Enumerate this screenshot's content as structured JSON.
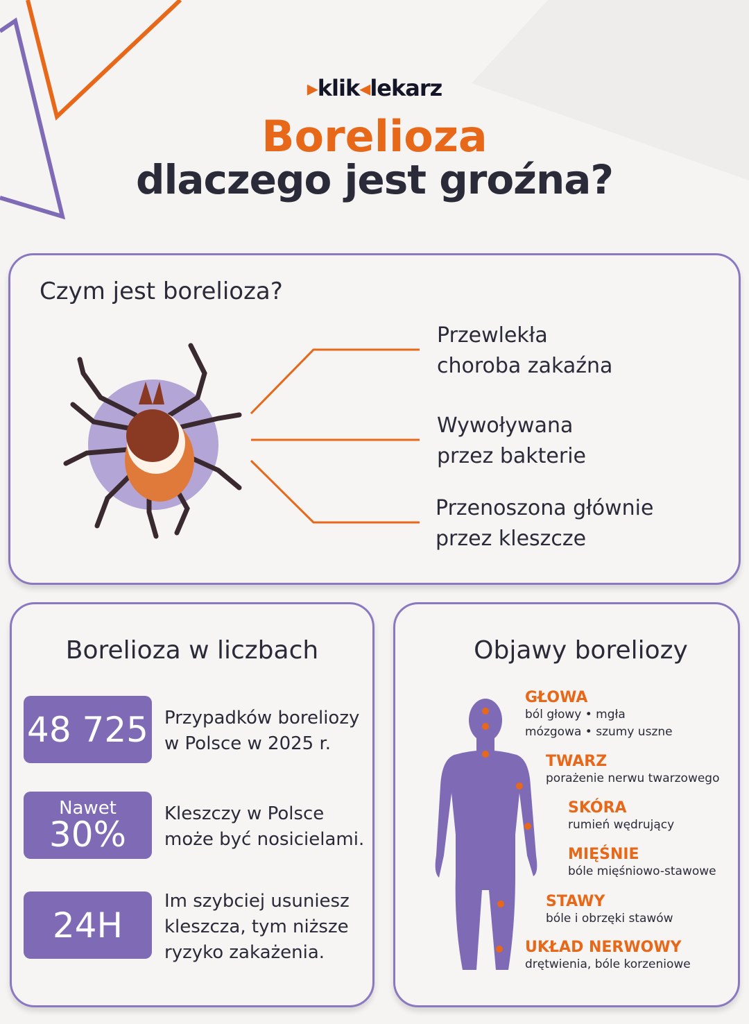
{
  "brand": {
    "logo_left": "klik",
    "logo_right": "lekarz"
  },
  "title": {
    "main": "Borelioza",
    "sub": "dlaczego jest groźna?"
  },
  "what": {
    "heading": "Czym jest borelioza?",
    "facts": [
      "Przewlekła\nchoroba zakaźna",
      "Wywoływana\nprzez bakterie",
      "Przenoszona głównie\nprzez kleszcze"
    ]
  },
  "numbers": {
    "heading": "Borelioza w liczbach",
    "stats": [
      {
        "value": "48 725",
        "text": "Przypadków boreliozy\nw Polsce w 2025 r."
      },
      {
        "prefix": "Nawet",
        "value": "30%",
        "text": "Kleszczy w Polsce\nmoże być nosicielami."
      },
      {
        "value": "24H",
        "text": "Im szybciej usuniesz\nkleszcza, tym niższe\nryzyko zakażenia."
      }
    ]
  },
  "symptoms": {
    "heading": "Objawy boreliozy",
    "items": [
      {
        "title": "GŁOWA",
        "desc": "ból głowy • mgła\nmózgowa • szumy uszne"
      },
      {
        "title": "TWARZ",
        "desc": "porażenie nerwu twarzowego"
      },
      {
        "title": "SKÓRA",
        "desc": "rumień wędrujący"
      },
      {
        "title": "MIĘŚNIE",
        "desc": "bóle mięśniowo-stawowe"
      },
      {
        "title": "STAWY",
        "desc": "bóle i obrzęki stawów"
      },
      {
        "title": "UKŁAD NERWOWY",
        "desc": "drętwienia, bóle korzeniowe"
      }
    ]
  },
  "colors": {
    "accent": "#e8681a",
    "purple": "#7e6ab5",
    "text": "#2a2a38",
    "background": "#f5f4f2"
  }
}
